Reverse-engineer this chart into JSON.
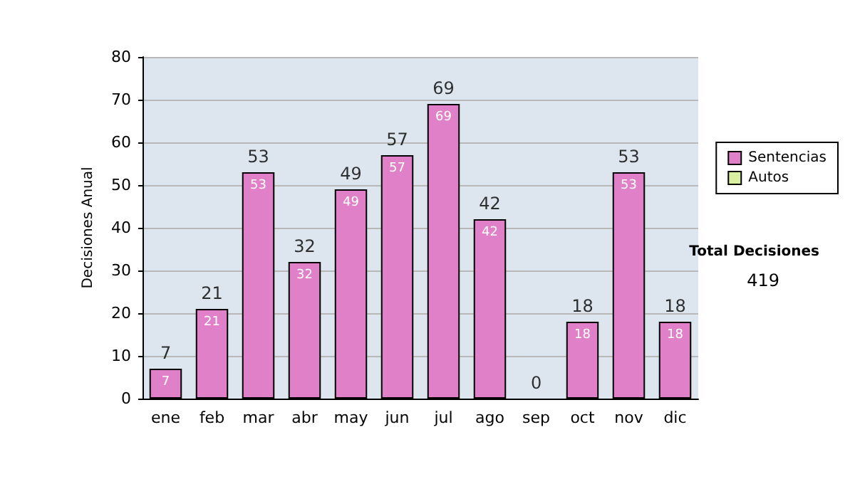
{
  "chart_data": {
    "type": "bar",
    "ylabel": "Decisiones Anual",
    "categories": [
      "ene",
      "feb",
      "mar",
      "abr",
      "may",
      "jun",
      "jul",
      "ago",
      "sep",
      "oct",
      "nov",
      "dic"
    ],
    "series": [
      {
        "name": "Sentencias",
        "color": "#e080c8",
        "values": [
          7,
          21,
          53,
          32,
          49,
          57,
          69,
          42,
          0,
          18,
          53,
          18
        ],
        "value_labels": [
          "7",
          "21",
          "53",
          "32",
          "49",
          "57",
          "69",
          "42",
          null,
          "18",
          "53",
          "18"
        ]
      },
      {
        "name": "Autos",
        "color": "#d8f0a0",
        "values": [
          0,
          0,
          0,
          0,
          0,
          0,
          0,
          0,
          0,
          0,
          0,
          0
        ]
      }
    ],
    "stacked": true,
    "totals": [
      "7",
      "21",
      "53",
      "32",
      "49",
      "57",
      "69",
      "42",
      "0",
      "18",
      "53",
      "18"
    ],
    "ylim": [
      0,
      80
    ],
    "yticks": [
      0,
      10,
      20,
      30,
      40,
      50,
      60,
      70,
      80
    ],
    "grid": "y",
    "legend": "right",
    "annotations": [
      "Total Decisiones",
      "419"
    ]
  }
}
